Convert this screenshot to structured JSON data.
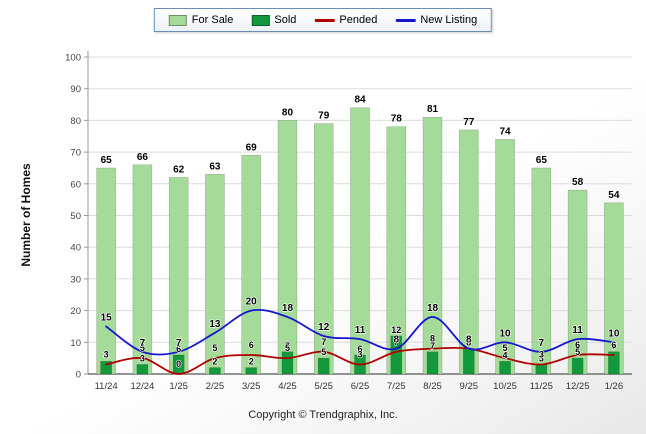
{
  "page": {
    "footer": "Copyright © Trendgraphix, Inc."
  },
  "chart_data": {
    "type": "bar+line combo",
    "title": "",
    "categories": [
      "11/24",
      "12/24",
      "1/25",
      "2/25",
      "3/25",
      "4/25",
      "5/25",
      "6/25",
      "7/25",
      "8/25",
      "9/25",
      "10/25",
      "11/25",
      "12/25",
      "1/26"
    ],
    "series": [
      {
        "name": "For Sale",
        "type": "bar",
        "color": "#a5db99",
        "values": [
          65,
          66,
          62,
          63,
          69,
          80,
          79,
          84,
          78,
          81,
          77,
          74,
          65,
          58,
          54
        ]
      },
      {
        "name": "Sold",
        "type": "bar",
        "color": "#12993b",
        "values": [
          4,
          3,
          6,
          2,
          2,
          7,
          5,
          6,
          12,
          7,
          8,
          4,
          3,
          5,
          7
        ]
      },
      {
        "name": "Pended",
        "type": "line",
        "color": "#b00000",
        "values": [
          3,
          5,
          0,
          5,
          6,
          5,
          7,
          3,
          7,
          8,
          8,
          5,
          3,
          6,
          6
        ]
      },
      {
        "name": "New Listing",
        "type": "line",
        "color": "#1616ce",
        "values": [
          15,
          7,
          7,
          13,
          20,
          18,
          12,
          11,
          8,
          18,
          8,
          10,
          7,
          11,
          10
        ]
      }
    ],
    "xlabel": "",
    "ylabel": "Number of Homes",
    "ylim": [
      0,
      100
    ],
    "ytick_step": 10,
    "grid": true,
    "legend_position": "top-center",
    "value_labels": true
  }
}
